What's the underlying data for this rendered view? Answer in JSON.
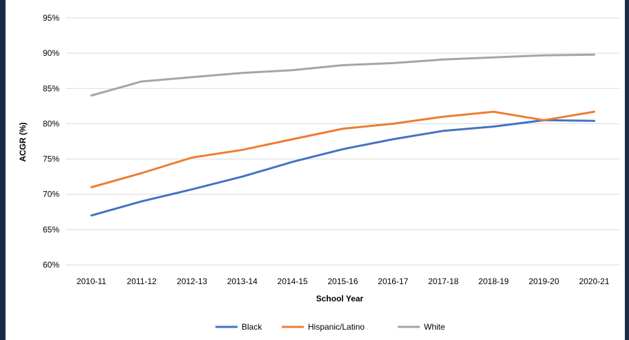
{
  "chart_data": {
    "type": "line",
    "title": "",
    "xlabel": "School Year",
    "ylabel": "ACGR (%)",
    "ylim": [
      60,
      95
    ],
    "yticks": [
      "60%",
      "65%",
      "70%",
      "75%",
      "80%",
      "85%",
      "90%",
      "95%"
    ],
    "ytick_values": [
      60,
      65,
      70,
      75,
      80,
      85,
      90,
      95
    ],
    "grid": true,
    "legend": "bottom",
    "categories": [
      "2010-11",
      "2011-12",
      "2012-13",
      "2013-14",
      "2014-15",
      "2015-16",
      "2016-17",
      "2017-18",
      "2018-19",
      "2019-20",
      "2020-21"
    ],
    "series": [
      {
        "name": "Black",
        "color": "#4472c4",
        "values": [
          67.0,
          69.0,
          70.7,
          72.5,
          74.6,
          76.4,
          77.8,
          79.0,
          79.6,
          80.5,
          80.4
        ]
      },
      {
        "name": "Hispanic/Latino",
        "color": "#ed7d31",
        "values": [
          71.0,
          73.0,
          75.2,
          76.3,
          77.8,
          79.3,
          80.0,
          81.0,
          81.7,
          80.5,
          81.7
        ]
      },
      {
        "name": "White",
        "color": "#a5a5a5",
        "values": [
          84.0,
          86.0,
          86.6,
          87.2,
          87.6,
          88.3,
          88.6,
          89.1,
          89.4,
          89.7,
          89.8
        ]
      }
    ]
  }
}
